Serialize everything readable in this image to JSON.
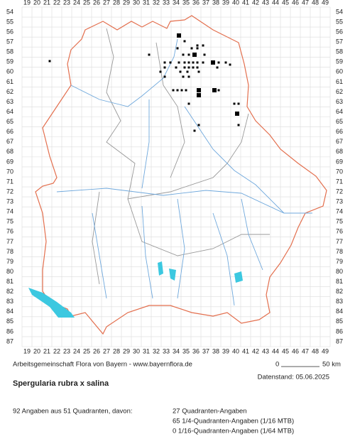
{
  "grid": {
    "columns": [
      19,
      20,
      21,
      22,
      23,
      24,
      25,
      26,
      27,
      28,
      29,
      30,
      31,
      32,
      33,
      34,
      35,
      36,
      37,
      38,
      39,
      40,
      41,
      42,
      43,
      44,
      45,
      46,
      47,
      48,
      49
    ],
    "rows": [
      54,
      55,
      56,
      57,
      58,
      59,
      60,
      61,
      62,
      63,
      64,
      65,
      66,
      67,
      68,
      69,
      70,
      71,
      72,
      73,
      74,
      75,
      76,
      77,
      78,
      79,
      80,
      81,
      82,
      83,
      84,
      85,
      86,
      87
    ]
  },
  "credit": "Arbeitsgemeinschaft Flora von Bayern - www.bayernflora.de",
  "scale": {
    "start": "0",
    "end": "50 km"
  },
  "date": "Datenstand: 05.06.2025",
  "species": "Spergularia rubra x salina",
  "summary": {
    "total": "92 Angaben aus 51 Quadranten, davon:",
    "lines": [
      "27 Quadranten-Angaben",
      "65 1/4-Quadranten-Angaben (1/16 MTB)",
      "0 1/16-Quadranten-Angaben (1/64 MTB)"
    ]
  }
}
